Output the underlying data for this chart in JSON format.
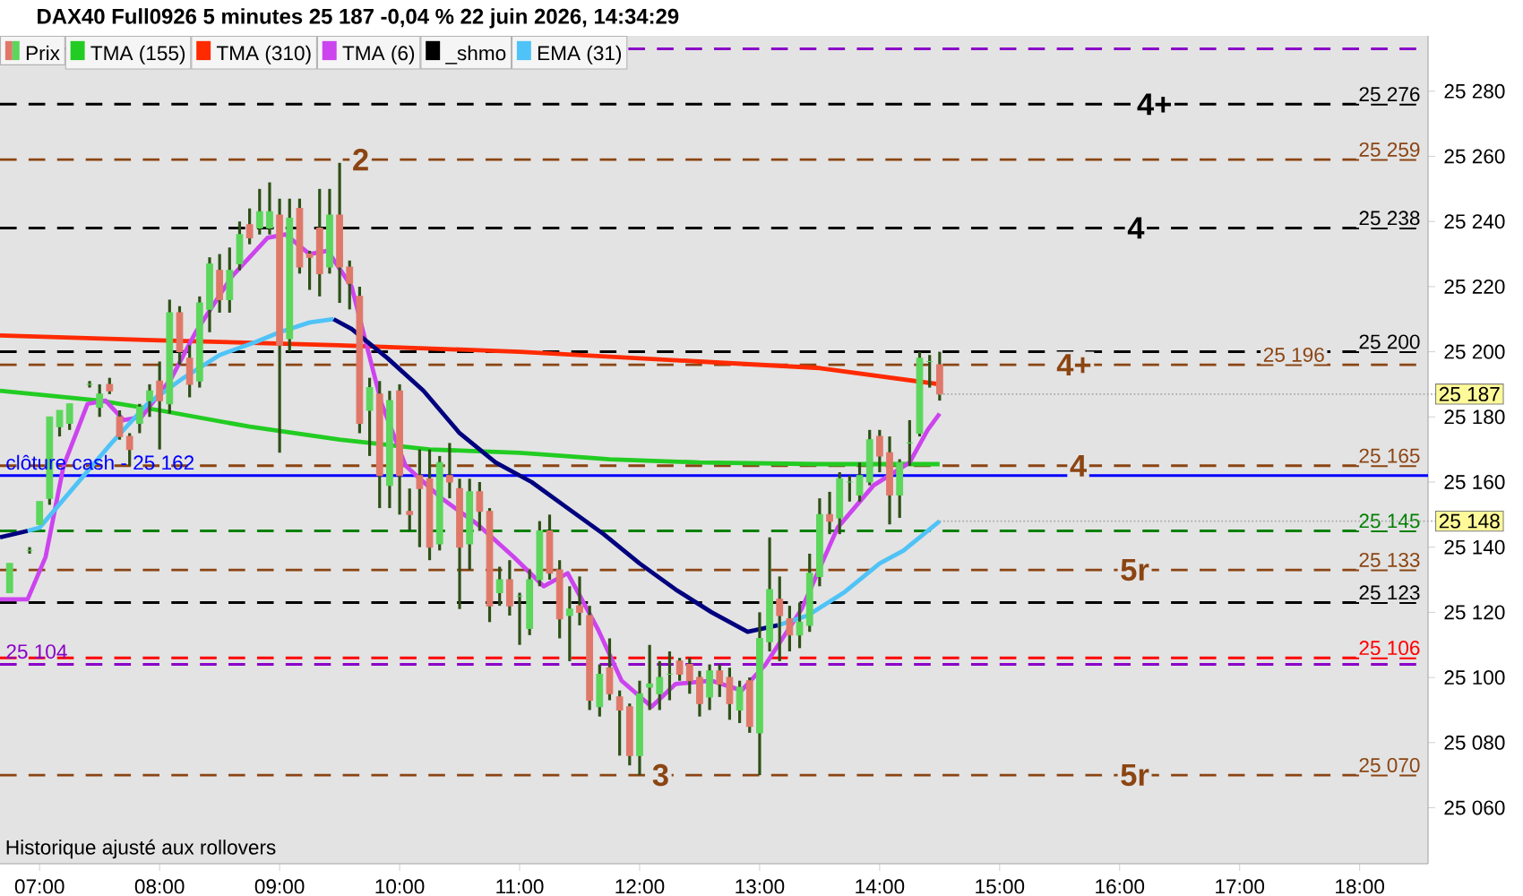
{
  "chart_data": {
    "type": "candlestick",
    "title": "DAX40 Full0926 5 minutes 25 187 -0,04 % 22 juin 2026, 14:34:29",
    "xlim": [
      6.67,
      18.57
    ],
    "ylim": [
      25042.8,
      25297
    ],
    "xticks": [
      {
        "value": 7,
        "label": "07:00"
      },
      {
        "value": 8,
        "label": "08:00"
      },
      {
        "value": 9,
        "label": "09:00"
      },
      {
        "value": 10,
        "label": "10:00"
      },
      {
        "value": 11,
        "label": "11:00"
      },
      {
        "value": 12,
        "label": "12:00"
      },
      {
        "value": 13,
        "label": "13:00"
      },
      {
        "value": 14,
        "label": "14:00"
      },
      {
        "value": 15,
        "label": "15:00"
      },
      {
        "value": 16,
        "label": "16:00"
      },
      {
        "value": 17,
        "label": "17:00"
      },
      {
        "value": 18,
        "label": "18:00"
      }
    ],
    "yticks": [
      {
        "value": 25060,
        "label": "25 060"
      },
      {
        "value": 25080,
        "label": "25 080"
      },
      {
        "value": 25100,
        "label": "25 100"
      },
      {
        "value": 25120,
        "label": "25 120"
      },
      {
        "value": 25140,
        "label": "25 140"
      },
      {
        "value": 25160,
        "label": "25 160"
      },
      {
        "value": 25180,
        "label": "25 180"
      },
      {
        "value": 25200,
        "label": "25 200"
      },
      {
        "value": 25220,
        "label": "25 220"
      },
      {
        "value": 25240,
        "label": "25 240"
      },
      {
        "value": 25260,
        "label": "25 260"
      },
      {
        "value": 25280,
        "label": "25 280"
      }
    ],
    "legend": "top left",
    "series": [
      {
        "name": "Prix",
        "colors": [
          "#5cd65c",
          "#5cd65c",
          "#5cd65c",
          "#5cd65c",
          "#5cd65c",
          "#5cd65c",
          "#5cd65c",
          "#5cd65c",
          "#e0786a",
          "#e0786a",
          "#e0786a",
          "#5cd65c",
          "#5cd65c",
          "#e0786a",
          "#5cd65c",
          "#e0786a",
          "#e0786a",
          "#5cd65c",
          "#5cd65c",
          "#e0786a",
          "#5cd65c",
          "#5cd65c",
          "#e0786a",
          "#5cd65c",
          "#5cd65c",
          "#e0786a",
          "#5cd65c",
          "#e0786a",
          "#e0786a",
          "#e0786a",
          "#5cd65c",
          "#e0786a",
          "#e0786a",
          "#e0786a",
          "#5cd65c",
          "#e0786a",
          "#5cd65c",
          "#e0786a",
          "#e0786a",
          "#e0786a",
          "#e0786a",
          "#5cd65c",
          "#e0786a",
          "#e0786a",
          "#5cd65c",
          "#e0786a",
          "#e0786a",
          "#5cd65c",
          "#e0786a",
          "#5cd65c",
          "#5cd65c",
          "#5cd65c",
          "#e0786a",
          "#e0786a",
          "#5cd65c",
          "#e0786a",
          "#e0786a",
          "#5cd65c",
          "#e0786a",
          "#e0786a",
          "#e0786a",
          "#5cd65c",
          "#5cd65c",
          "#5cd65c",
          "#5cd65c",
          "#e0786a",
          "#e0786a",
          "#e0786a",
          "#5cd65c",
          "#e0786a",
          "#e0786a",
          "#5cd65c",
          "#e0786a",
          "#5cd65c",
          "#5cd65c",
          "#e0786a",
          "#e0786a",
          "#5cd65c",
          "#5cd65c",
          "#5cd65c",
          "#e0786a",
          "#5cd65c",
          "#5cd65c",
          "#5cd65c",
          "#5cd65c",
          "#e0786a",
          "#e0786a",
          "#5cd65c",
          "#5cd65c",
          "#5cd65c",
          "#5cd65c",
          "#e0786a"
        ],
        "x": [
          6.75,
          6.9167,
          7.0,
          7.0833,
          7.1667,
          7.25,
          7.4167,
          7.5,
          7.5833,
          7.6667,
          7.75,
          7.8333,
          7.9167,
          8.0,
          8.0833,
          8.1667,
          8.25,
          8.3333,
          8.4167,
          8.5,
          8.5833,
          8.6667,
          8.75,
          8.8333,
          8.9167,
          9.0,
          9.0833,
          9.1667,
          9.25,
          9.3333,
          9.4167,
          9.5,
          9.5833,
          9.6667,
          9.75,
          9.8333,
          9.9167,
          10.0,
          10.0833,
          10.1667,
          10.25,
          10.3333,
          10.4167,
          10.5,
          10.5833,
          10.6667,
          10.75,
          10.8333,
          10.9167,
          11.0,
          11.0833,
          11.1667,
          11.25,
          11.3333,
          11.4167,
          11.5,
          11.5833,
          11.6667,
          11.75,
          11.8333,
          11.9167,
          12.0,
          12.0833,
          12.1667,
          12.25,
          12.3333,
          12.4167,
          12.5,
          12.5833,
          12.6667,
          12.75,
          12.8333,
          12.9167,
          13.0,
          13.0833,
          13.1667,
          13.25,
          13.3333,
          13.4167,
          13.5,
          13.5833,
          13.6667,
          13.75,
          13.8333,
          13.9167,
          14.0,
          14.0833,
          14.1667,
          14.25,
          14.3333,
          14.4167,
          14.5
        ],
        "ohlc": [
          [
            25126,
            25135,
            25126,
            25135
          ],
          [
            25139,
            25140,
            25138,
            25139
          ],
          [
            25147,
            25154,
            25147,
            25154
          ],
          [
            25155,
            25180,
            25153,
            25180
          ],
          [
            25177,
            25182,
            25174,
            25182
          ],
          [
            25178,
            25184,
            25176,
            25184
          ],
          [
            25190,
            25191,
            25189,
            25190
          ],
          [
            25183,
            25190,
            25180,
            25187
          ],
          [
            25190,
            25192,
            25187,
            25188
          ],
          [
            25180,
            25182,
            25173,
            25174
          ],
          [
            25174,
            25175,
            25165,
            25170
          ],
          [
            25178,
            25184,
            25175,
            25183
          ],
          [
            25185,
            25190,
            25180,
            25188
          ],
          [
            25191,
            25197,
            25170,
            25185
          ],
          [
            25184,
            25216,
            25181,
            25212
          ],
          [
            25212,
            25214,
            25196,
            25200
          ],
          [
            25198,
            25202,
            25186,
            25190
          ],
          [
            25191,
            25217,
            25189,
            25215
          ],
          [
            25213,
            25229,
            25206,
            25227
          ],
          [
            25225,
            25230,
            25212,
            25216
          ],
          [
            25216,
            25232,
            25212,
            25225
          ],
          [
            25227,
            25240,
            25225,
            25236
          ],
          [
            25239,
            25244,
            25233,
            25235
          ],
          [
            25238,
            25250,
            25236,
            25243
          ],
          [
            25238,
            25252,
            25236,
            25243
          ],
          [
            25242,
            25247,
            25169,
            25202
          ],
          [
            25204,
            25247,
            25200,
            25241
          ],
          [
            25244,
            25247,
            25224,
            25226
          ],
          [
            25230,
            25231,
            25219,
            25229
          ],
          [
            25238,
            25250,
            25217,
            25224
          ],
          [
            25226,
            25250,
            25224,
            25242
          ],
          [
            25242,
            25258,
            25215,
            25226
          ],
          [
            25226,
            25228,
            25213,
            25221
          ],
          [
            25217,
            25220,
            25175,
            25178
          ],
          [
            25182,
            25192,
            25168,
            25189
          ],
          [
            25187,
            25191,
            25152,
            25162
          ],
          [
            25159,
            25188,
            25152,
            25185
          ],
          [
            25188,
            25190,
            25150,
            25162
          ],
          [
            25151,
            25158,
            25145,
            25150
          ],
          [
            25162,
            25170,
            25140,
            25158
          ],
          [
            25161,
            25170,
            25136,
            25140
          ],
          [
            25141,
            25168,
            25139,
            25166
          ],
          [
            25162,
            25172,
            25155,
            25160
          ],
          [
            25158,
            25161,
            25121,
            25140
          ],
          [
            25141,
            25161,
            25133,
            25157
          ],
          [
            25157,
            25160,
            25145,
            25151
          ],
          [
            25151,
            25152,
            25117,
            25122
          ],
          [
            25126,
            25134,
            25122,
            25130
          ],
          [
            25130,
            25136,
            25119,
            25122
          ],
          [
            25125,
            25126,
            25110,
            25125
          ],
          [
            25115,
            25133,
            25113,
            25130
          ],
          [
            25130,
            25148,
            25128,
            25145
          ],
          [
            25145,
            25150,
            25130,
            25132
          ],
          [
            25133,
            25136,
            25112,
            25118
          ],
          [
            25119,
            25128,
            25105,
            25121
          ],
          [
            25122,
            25131,
            25116,
            25120
          ],
          [
            25119,
            25122,
            25090,
            25093
          ],
          [
            25091,
            25104,
            25088,
            25101
          ],
          [
            25103,
            25112,
            25093,
            25095
          ],
          [
            25094,
            25096,
            25076,
            25090
          ],
          [
            25091,
            25092,
            25073,
            25076
          ],
          [
            25076,
            25099,
            25070,
            25095
          ],
          [
            25097,
            25110,
            25090,
            25098
          ],
          [
            25095,
            25105,
            25090,
            25100
          ],
          [
            25101,
            25108,
            25093,
            25101
          ],
          [
            25105,
            25106,
            25099,
            25101
          ],
          [
            25104,
            25106,
            25095,
            25099
          ],
          [
            25100,
            25102,
            25088,
            25092
          ],
          [
            25094,
            25104,
            25090,
            25102
          ],
          [
            25102,
            25104,
            25094,
            25098
          ],
          [
            25100,
            25103,
            25087,
            25092
          ],
          [
            25090,
            25099,
            25086,
            25097
          ],
          [
            25099,
            25100,
            25083,
            25085
          ],
          [
            25083,
            25120,
            25070,
            25112
          ],
          [
            25111,
            25143,
            25108,
            25127
          ],
          [
            25124,
            25131,
            25105,
            25119
          ],
          [
            25118,
            25122,
            25108,
            25113
          ],
          [
            25113,
            25123,
            25109,
            25117
          ],
          [
            25116,
            25138,
            25114,
            25132
          ],
          [
            25131,
            25155,
            25128,
            25150
          ],
          [
            25150,
            25157,
            25144,
            25148
          ],
          [
            25149,
            25163,
            25144,
            25161
          ],
          [
            25160,
            25162,
            25154,
            25160
          ],
          [
            25156,
            25166,
            25154,
            25162
          ],
          [
            25160,
            25176,
            25159,
            25173
          ],
          [
            25174,
            25176,
            25163,
            25168
          ],
          [
            25169,
            25174,
            25147,
            25156
          ],
          [
            25156,
            25167,
            25149,
            25166
          ],
          [
            25172,
            25179,
            25165,
            25172
          ],
          [
            25175,
            25200,
            25174,
            25198
          ],
          [
            25197,
            25199,
            25189,
            25197
          ],
          [
            25196,
            25200,
            25185,
            25187
          ]
        ]
      },
      {
        "type": "line",
        "name": "TMA (155)",
        "color": "#22cc22",
        "x": [
          6.67,
          7.5,
          8.0,
          8.75,
          9.5,
          10.25,
          11.0,
          11.75,
          12.5,
          13.5,
          14.5
        ],
        "values": [
          25188,
          25185,
          25182,
          25177,
          25173,
          25170,
          25169,
          25167,
          25166,
          25165.5,
          25165.5
        ]
      },
      {
        "type": "line",
        "name": "TMA (310)",
        "color": "#ff2a00",
        "x": [
          6.67,
          8.0,
          9.5,
          11.0,
          12.5,
          13.5,
          14.5
        ],
        "values": [
          25205,
          25203.5,
          25202,
          25200,
          25197,
          25195,
          25190
        ]
      },
      {
        "type": "line",
        "name": "TMA (6)",
        "color": "#cc44ee",
        "x": [
          6.67,
          6.9,
          7.05,
          7.2,
          7.4,
          7.55,
          7.7,
          7.85,
          8.1,
          8.3,
          8.6,
          8.9,
          9.05,
          9.25,
          9.4,
          9.6,
          9.85,
          10.05,
          10.35,
          10.65,
          10.95,
          11.2,
          11.4,
          11.65,
          11.85,
          12.1,
          12.3,
          12.6,
          12.85,
          13.05,
          13.35,
          13.65,
          13.95,
          14.25,
          14.4,
          14.5
        ],
        "values": [
          25124,
          25124,
          25137,
          25165,
          25184,
          25185,
          25179,
          25180,
          25192,
          25206,
          25223,
          25235,
          25236,
          25230,
          25231,
          25220,
          25184,
          25165,
          25155,
          25147,
          25137,
          25128,
          25132,
          25115,
          25099,
          25091,
          25098,
          25099,
          25096,
          25104,
          25121,
          25146,
          25159,
          25166,
          25176,
          25181
        ]
      },
      {
        "type": "line",
        "name": "_shmo",
        "color": "#000000"
      },
      {
        "type": "line",
        "name": "EMA (31)",
        "color": "#4fc3f7",
        "x": [
          6.9,
          7.0,
          7.3,
          7.6,
          7.9,
          8.2,
          8.5,
          8.8,
          9.0,
          9.25,
          9.45,
          11.0,
          13.15,
          13.4,
          13.7,
          14.0,
          14.2,
          14.5
        ],
        "values": [
          25145,
          25146,
          25159,
          25172,
          25184,
          25192,
          25199,
          25203,
          25206,
          25209,
          25210,
          null,
          25116,
          25119,
          25126,
          25135,
          25139,
          25148
        ]
      },
      {
        "type": "line",
        "color": "#00007f",
        "x": [
          6.67,
          6.9,
          8.0,
          9.45,
          9.6,
          9.9,
          10.2,
          10.5,
          10.8,
          11.1,
          11.4,
          11.7,
          12.0,
          12.3,
          12.6,
          12.9,
          13.15
        ],
        "values": [
          25143,
          25145,
          null,
          25210,
          25207,
          25198,
          25188,
          25175,
          25166,
          25160,
          25152,
          25144,
          25135,
          25127,
          25120,
          25114,
          25116
        ]
      }
    ],
    "ref_lines": [
      {
        "axis": "y",
        "value": 25293,
        "color": "#8a00c8",
        "line_style": "dashed"
      },
      {
        "axis": "y",
        "value": 25276,
        "label": "25 276",
        "color": "#000000",
        "line_style": "dashed"
      },
      {
        "axis": "y",
        "value": 25259,
        "label": "25 259",
        "color": "#8b4513",
        "line_style": "dashed"
      },
      {
        "axis": "y",
        "value": 25238,
        "label": "25 238",
        "color": "#000000",
        "line_style": "dashed"
      },
      {
        "axis": "y",
        "value": 25200,
        "label": "25 200",
        "color": "#000000",
        "line_style": "dashed"
      },
      {
        "axis": "y",
        "value": 25196,
        "label": "25 196",
        "color": "#8b4513",
        "line_style": "dashed"
      },
      {
        "axis": "y",
        "value": 25165,
        "label": "25 165",
        "color": "#8b4513",
        "line_style": "dashed"
      },
      {
        "axis": "y",
        "value": 25162,
        "color": "#0000ff",
        "line_style": "solid"
      },
      {
        "axis": "y",
        "value": 25145,
        "label": "25 145",
        "color": "#008000",
        "line_style": "dashed"
      },
      {
        "axis": "y",
        "value": 25133,
        "label": "25 133",
        "color": "#8b4513",
        "line_style": "dashed"
      },
      {
        "axis": "y",
        "value": 25123,
        "label": "25 123",
        "color": "#000000",
        "line_style": "dashed"
      },
      {
        "axis": "y",
        "value": 25106,
        "label": "25 106",
        "color": "#ff0000",
        "line_style": "dashed"
      },
      {
        "axis": "y",
        "value": 25104,
        "color": "#8a00c8",
        "line_style": "dashed"
      },
      {
        "axis": "y",
        "value": 25070,
        "label": "25 070",
        "color": "#8b4513",
        "line_style": "dashed"
      }
    ],
    "annotations": [
      {
        "text": "2",
        "x": 9.5,
        "y": 25259
      },
      {
        "text": "3",
        "x": 12.0,
        "y": 25070
      },
      {
        "text": "4+",
        "x": 16.04,
        "y": 25276
      },
      {
        "text": "4",
        "x": 15.96,
        "y": 25238
      },
      {
        "text": "4+",
        "x": 15.37,
        "y": 25196
      },
      {
        "text": "4",
        "x": 15.48,
        "y": 25165
      },
      {
        "text": "5r",
        "x": 15.9,
        "y": 25133
      },
      {
        "text": "5r",
        "x": 15.9,
        "y": 25070
      },
      {
        "text": "clôture cash -  25 162",
        "x": 6.67,
        "y": 25162
      },
      {
        "text": "25 104",
        "x": 6.67,
        "y": 25104
      },
      {
        "text": "25 187",
        "x": 14.5,
        "y": 25187
      },
      {
        "text": "25 148",
        "x": 14.5,
        "y": 25148
      },
      "Historique ajusté aux rollovers"
    ]
  }
}
